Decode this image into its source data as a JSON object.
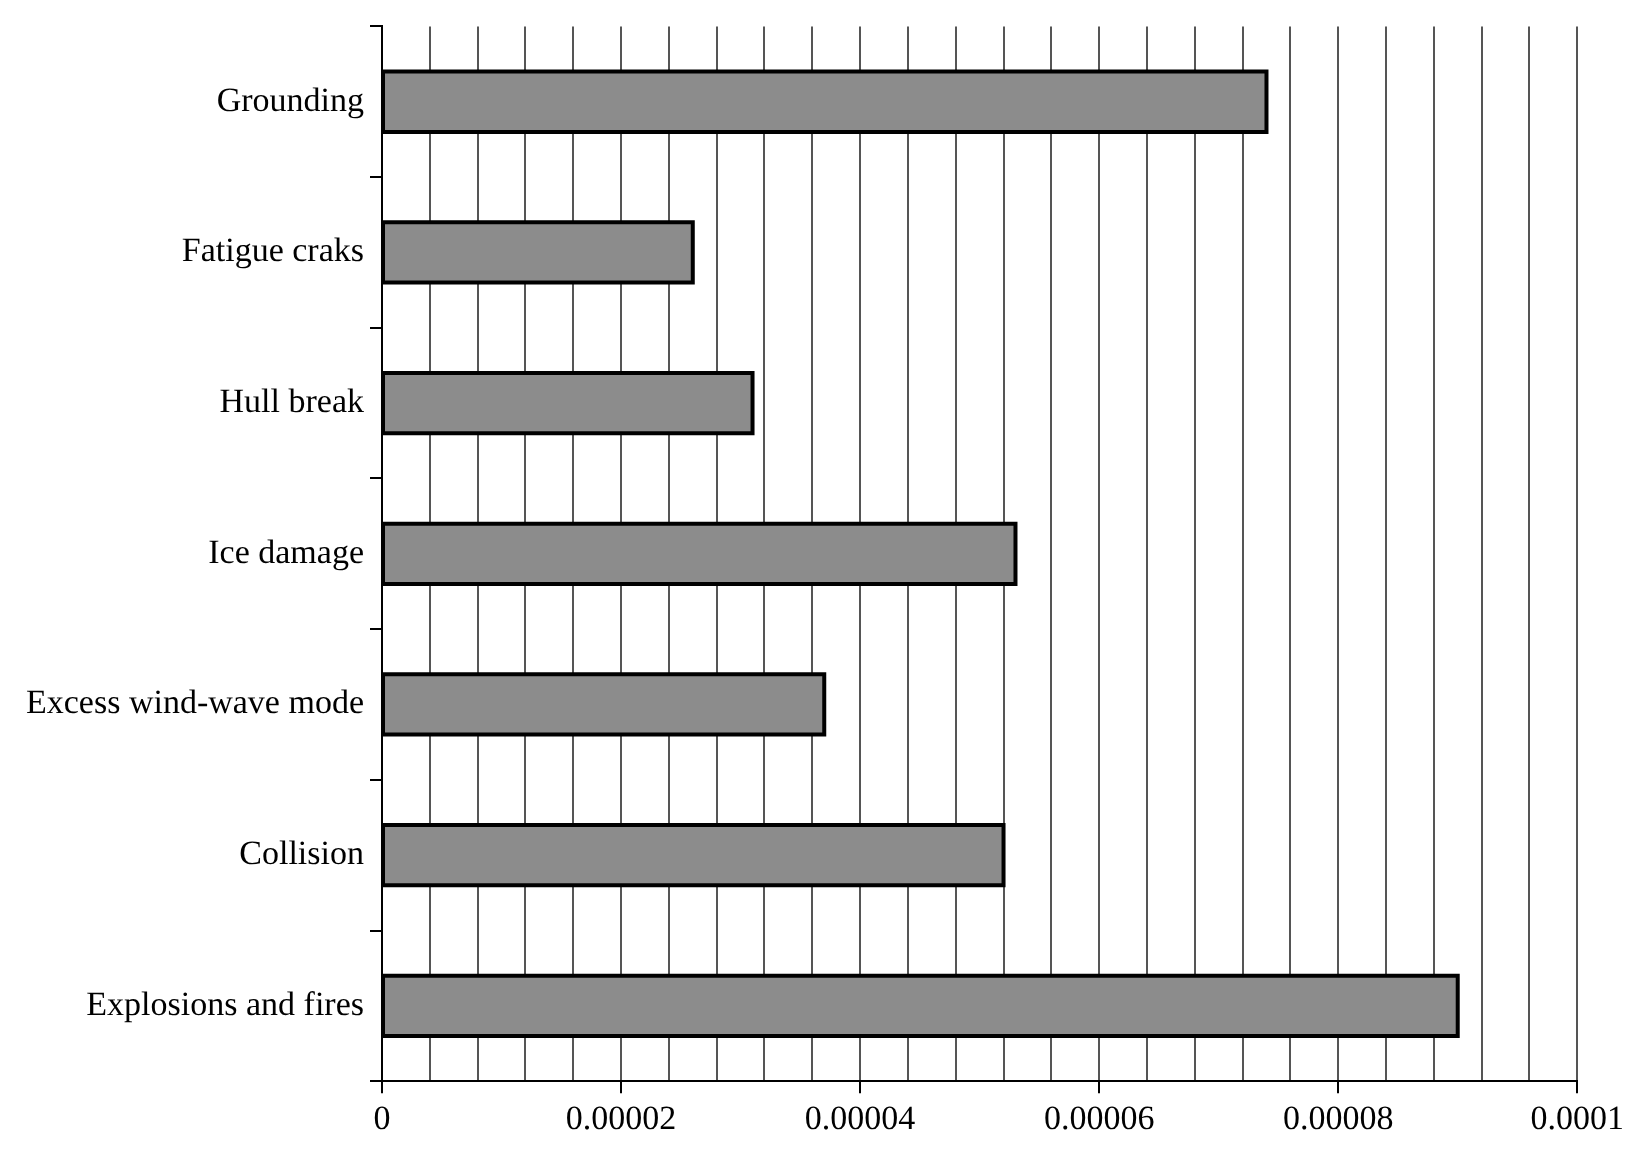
{
  "chart_data": {
    "type": "bar",
    "orientation": "horizontal",
    "categories": [
      "Grounding",
      "Fatigue craks",
      "Hull break",
      "Ice damage",
      "Excess wind-wave mode",
      "Collision",
      "Explosions and fires"
    ],
    "values": [
      7.4e-05,
      2.6e-05,
      3.1e-05,
      5.3e-05,
      3.7e-05,
      5.2e-05,
      9e-05
    ],
    "color": "#8c8c8c",
    "xlim": [
      0,
      0.0001
    ],
    "xticks": [
      0,
      {
        "value": 4e-06,
        "label": null
      },
      {
        "value": 8e-06,
        "label": null
      },
      {
        "value": 1.2e-05,
        "label": null
      },
      {
        "value": 1.6e-05,
        "label": null
      },
      {
        "value": 2e-05,
        "label": "0.00002"
      },
      {
        "value": 2.4e-05,
        "label": null
      },
      {
        "value": 2.8e-05,
        "label": null
      },
      {
        "value": 3.2e-05,
        "label": null
      },
      {
        "value": 3.6e-05,
        "label": null
      },
      {
        "value": 4e-05,
        "label": "0.00004"
      },
      {
        "value": 4.4e-05,
        "label": null
      },
      {
        "value": 4.8e-05,
        "label": null
      },
      {
        "value": 5.2e-05,
        "label": null
      },
      {
        "value": 5.6e-05,
        "label": null
      },
      {
        "value": 6e-05,
        "label": "0.00006"
      },
      {
        "value": 6.4e-05,
        "label": null
      },
      {
        "value": 6.8e-05,
        "label": null
      },
      {
        "value": 7.2e-05,
        "label": null
      },
      {
        "value": 7.6e-05,
        "label": null
      },
      {
        "value": 8e-05,
        "label": "0.00008"
      },
      {
        "value": 8.4e-05,
        "label": null
      },
      {
        "value": 8.8e-05,
        "label": null
      },
      {
        "value": 9.2e-05,
        "label": null
      },
      {
        "value": 9.6e-05,
        "label": null
      },
      {
        "value": 0.0001,
        "label": "0.0001"
      }
    ],
    "grid": "x",
    "legend": false
  }
}
